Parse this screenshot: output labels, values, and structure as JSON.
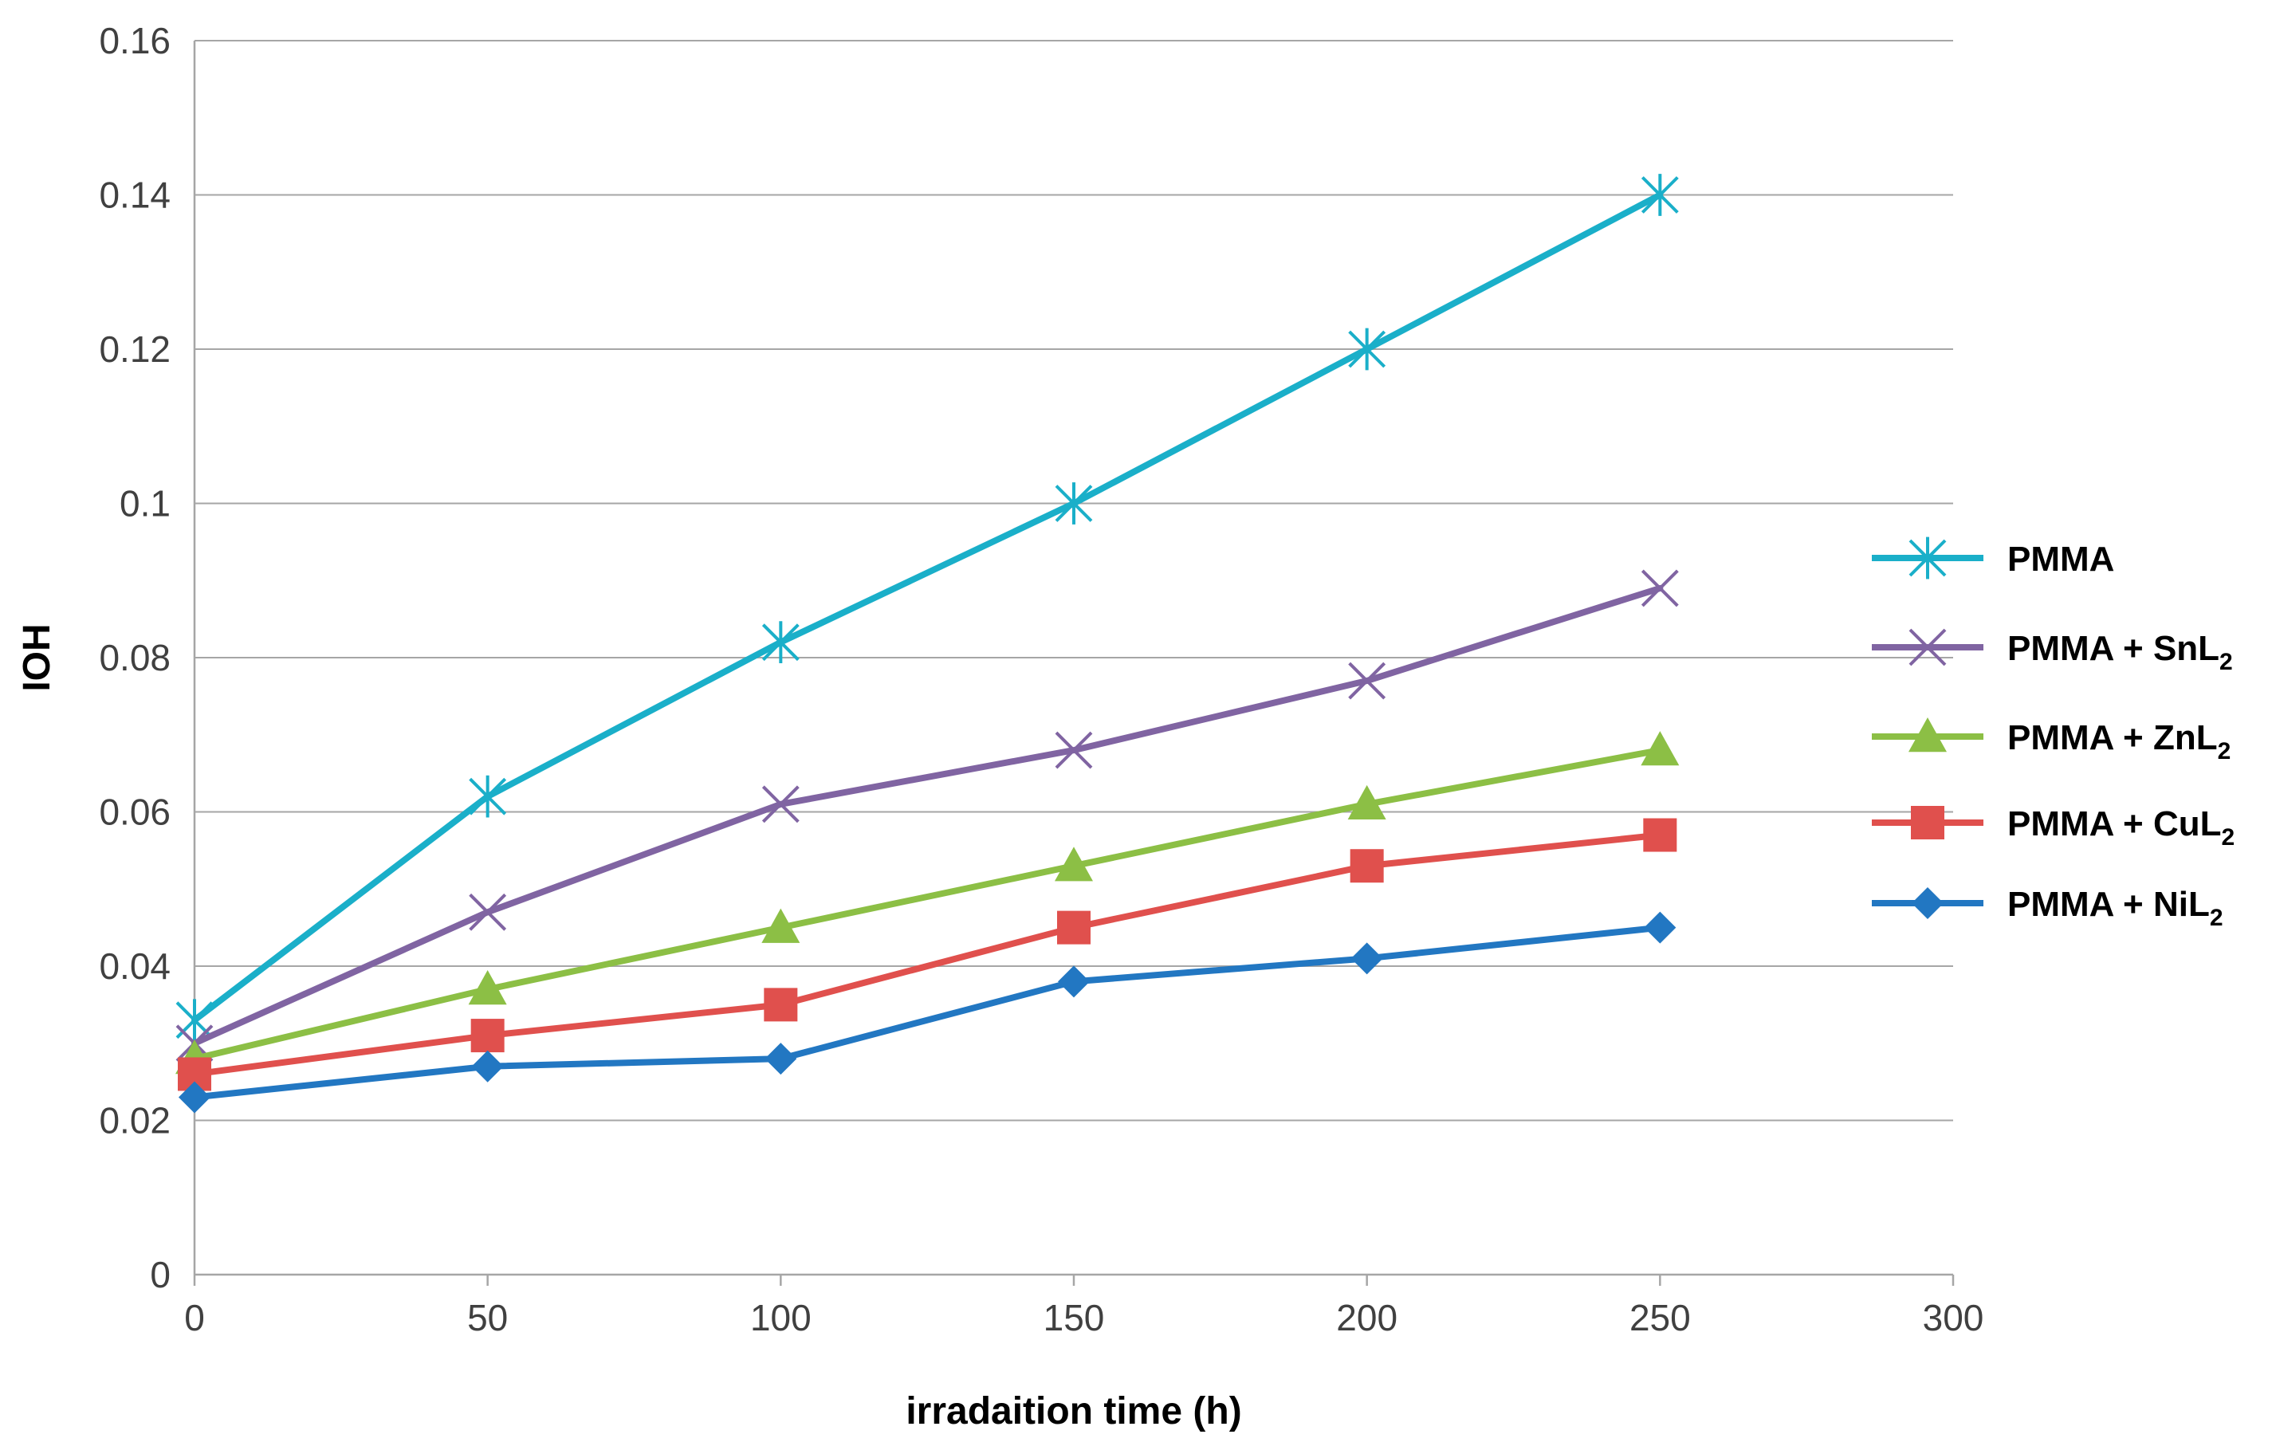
{
  "chart_data": {
    "type": "line",
    "title": "",
    "xlabel": "irradaition time (h)",
    "ylabel": "IOH",
    "xlim": [
      0,
      300
    ],
    "ylim": [
      0,
      0.16
    ],
    "x_ticks": [
      "0",
      "50",
      "100",
      "150",
      "200",
      "250",
      "300"
    ],
    "y_ticks": [
      "0",
      "0.02",
      "0.04",
      "0.06",
      "0.08",
      "0.1",
      "0.12",
      "0.14",
      "0.16"
    ],
    "grid": "horizontal",
    "legend_position": "right",
    "x": [
      0,
      50,
      100,
      150,
      200,
      250
    ],
    "series": [
      {
        "name": "PMMA",
        "name_main": "PMMA",
        "name_sub": "",
        "color": "#1AAFC9",
        "marker": "asterisk",
        "values": [
          0.033,
          0.062,
          0.082,
          0.1,
          0.12,
          0.14
        ]
      },
      {
        "name": "PMMA + SnL2",
        "name_main": "PMMA + SnL",
        "name_sub": "2",
        "color": "#8064A2",
        "marker": "x",
        "values": [
          0.03,
          0.047,
          0.061,
          0.068,
          0.077,
          0.089
        ]
      },
      {
        "name": "PMMA + ZnL2",
        "name_main": "PMMA + ZnL",
        "name_sub": "2",
        "color": "#8CBF45",
        "marker": "triangle",
        "values": [
          0.028,
          0.037,
          0.045,
          0.053,
          0.061,
          0.068
        ]
      },
      {
        "name": "PMMA + CuL2",
        "name_main": "PMMA + CuL",
        "name_sub": "2",
        "color": "#E0504D",
        "marker": "square",
        "values": [
          0.026,
          0.031,
          0.035,
          0.045,
          0.053,
          0.057
        ]
      },
      {
        "name": "PMMA + NiL2",
        "name_main": "PMMA + NiL",
        "name_sub": "2",
        "color": "#2277C2",
        "marker": "diamond",
        "values": [
          0.023,
          0.027,
          0.028,
          0.038,
          0.041,
          0.045
        ]
      }
    ]
  }
}
